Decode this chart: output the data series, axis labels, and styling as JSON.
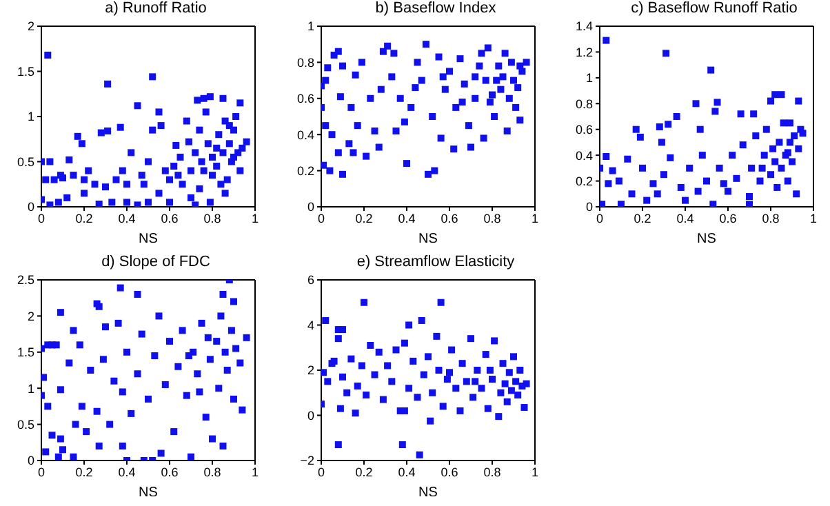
{
  "chart_data": [
    {
      "type": "scatter",
      "title": "a) Runoff Ratio",
      "xlabel": "NS",
      "color": "#1010ee",
      "marker": "square",
      "xlim": [
        0,
        1
      ],
      "xticks": [
        0,
        0.2,
        0.4,
        0.6,
        0.8,
        1
      ],
      "ylim": [
        0,
        2
      ],
      "yticks": [
        0,
        0.5,
        1,
        1.5,
        2
      ],
      "x": [
        0.03,
        0.31,
        0.52,
        0.45,
        0.55,
        0.76,
        0.79,
        0.73,
        0.85,
        0.93,
        0.28,
        0.31,
        0.37,
        0.17,
        0.19,
        0.0,
        0.04,
        0.02,
        0.06,
        0.1,
        0.13,
        0.15,
        0.2,
        0.25,
        0.3,
        0.35,
        0.4,
        0.42,
        0.47,
        0.5,
        0.52,
        0.56,
        0.6,
        0.62,
        0.65,
        0.68,
        0.7,
        0.72,
        0.75,
        0.77,
        0.78,
        0.8,
        0.82,
        0.83,
        0.85,
        0.86,
        0.88,
        0.89,
        0.9,
        0.92,
        0.94,
        0.96,
        0.93,
        0.87,
        0.84,
        0.8,
        0.74,
        0.7,
        0.66,
        0.6,
        0.55,
        0.5,
        0.45,
        0.4,
        0.33,
        0.27,
        0.2,
        0.12,
        0.08,
        0.0,
        0.04,
        0.86,
        0.79,
        0.72,
        0.9,
        0.82,
        0.76,
        0.64,
        0.58,
        0.48,
        0.38,
        0.22,
        0.09,
        0.69,
        0.63,
        0.74,
        0.88,
        0.91
      ],
      "values": [
        1.68,
        1.36,
        1.44,
        1.12,
        1.05,
        1.2,
        1.22,
        1.18,
        1.2,
        1.15,
        0.82,
        0.84,
        0.88,
        0.78,
        0.7,
        0.5,
        0.5,
        0.3,
        0.3,
        0.32,
        0.52,
        0.35,
        0.3,
        0.25,
        0.22,
        0.3,
        0.25,
        0.6,
        0.35,
        0.5,
        0.85,
        0.9,
        0.3,
        0.45,
        0.55,
        0.95,
        0.4,
        0.6,
        0.5,
        1.05,
        0.7,
        0.55,
        0.45,
        0.8,
        0.6,
        0.95,
        0.7,
        0.5,
        0.85,
        0.6,
        0.65,
        0.72,
        0.4,
        0.3,
        0.25,
        0.35,
        0.2,
        0.1,
        0.25,
        0.05,
        0.15,
        0.05,
        0.02,
        0.05,
        0.05,
        0.03,
        0.15,
        0.1,
        0.05,
        0.08,
        0.02,
        0.15,
        0.05,
        0.02,
        0.55,
        0.65,
        0.4,
        0.35,
        0.4,
        0.25,
        0.4,
        0.4,
        0.35,
        0.72,
        0.68,
        0.85,
        0.9,
        1.0
      ]
    },
    {
      "type": "scatter",
      "title": "b) Baseflow Index",
      "xlabel": "NS",
      "color": "#1010ee",
      "marker": "square",
      "xlim": [
        0,
        1
      ],
      "xticks": [
        0,
        0.2,
        0.4,
        0.6,
        0.8,
        1
      ],
      "ylim": [
        0,
        1
      ],
      "yticks": [
        0,
        0.2,
        0.4,
        0.6,
        0.8,
        1
      ],
      "x": [
        0,
        0.02,
        0.03,
        0.0,
        0.02,
        0.01,
        0.04,
        0.1,
        0.08,
        0.09,
        0.06,
        0.08,
        0.05,
        0.1,
        0.14,
        0.16,
        0.15,
        0.13,
        0.19,
        0.21,
        0.17,
        0.23,
        0.25,
        0.27,
        0.28,
        0.29,
        0.31,
        0.33,
        0.34,
        0.35,
        0.37,
        0.39,
        0.4,
        0.42,
        0.45,
        0.47,
        0.49,
        0.5,
        0.53,
        0.52,
        0.55,
        0.56,
        0.58,
        0.6,
        0.62,
        0.63,
        0.65,
        0.67,
        0.69,
        0.7,
        0.72,
        0.74,
        0.75,
        0.77,
        0.78,
        0.8,
        0.81,
        0.83,
        0.84,
        0.85,
        0.86,
        0.87,
        0.88,
        0.89,
        0.9,
        0.91,
        0.92,
        0.93,
        0.94,
        0.96,
        0.93,
        0.76,
        0.66,
        0.57,
        0.44,
        0.72,
        0.82,
        0.79
      ],
      "values": [
        0.67,
        0.7,
        0.77,
        0.55,
        0.45,
        0.23,
        0.2,
        0.18,
        0.3,
        0.61,
        0.84,
        0.86,
        0.4,
        0.78,
        0.55,
        0.73,
        0.3,
        0.35,
        0.8,
        0.28,
        0.45,
        0.6,
        0.42,
        0.33,
        0.65,
        0.86,
        0.89,
        0.72,
        0.85,
        0.42,
        0.6,
        0.47,
        0.24,
        0.55,
        0.8,
        0.7,
        0.9,
        0.18,
        0.2,
        0.5,
        0.83,
        0.38,
        0.65,
        0.75,
        0.32,
        0.55,
        0.82,
        0.68,
        0.45,
        0.33,
        0.6,
        0.78,
        0.85,
        0.7,
        0.88,
        0.62,
        0.5,
        0.78,
        0.65,
        0.72,
        0.85,
        0.42,
        0.6,
        0.8,
        0.7,
        0.55,
        0.66,
        0.78,
        0.75,
        0.8,
        0.48,
        0.38,
        0.58,
        0.72,
        0.66,
        0.72,
        0.7,
        0.58
      ]
    },
    {
      "type": "scatter",
      "title": "c) Baseflow Runoff Ratio",
      "xlabel": "NS",
      "color": "#1010ee",
      "marker": "square",
      "xlim": [
        0,
        1
      ],
      "xticks": [
        0,
        0.2,
        0.4,
        0.6,
        0.8,
        1
      ],
      "ylim": [
        0,
        1.4
      ],
      "yticks": [
        0,
        0.2,
        0.4,
        0.6,
        0.8,
        1,
        1.2,
        1.4
      ],
      "x": [
        0.03,
        0.31,
        0.52,
        0.45,
        0.55,
        0.36,
        0.17,
        0.19,
        0.29,
        0.28,
        0.32,
        0.47,
        0.54,
        0.66,
        0.72,
        0.8,
        0.82,
        0.85,
        0.93,
        0.89,
        0.0,
        0.03,
        0.01,
        0.04,
        0.06,
        0.09,
        0.1,
        0.13,
        0.15,
        0.2,
        0.22,
        0.25,
        0.27,
        0.3,
        0.33,
        0.38,
        0.4,
        0.42,
        0.48,
        0.5,
        0.53,
        0.56,
        0.6,
        0.62,
        0.64,
        0.67,
        0.7,
        0.71,
        0.73,
        0.75,
        0.77,
        0.78,
        0.8,
        0.81,
        0.83,
        0.84,
        0.85,
        0.86,
        0.87,
        0.88,
        0.89,
        0.9,
        0.91,
        0.92,
        0.93,
        0.94,
        0.95,
        0.7,
        0.58,
        0.46,
        0.76,
        0.82,
        0.88
      ],
      "values": [
        1.29,
        1.19,
        1.06,
        0.8,
        0.81,
        0.7,
        0.6,
        0.54,
        0.5,
        0.62,
        0.64,
        0.6,
        0.74,
        0.72,
        0.72,
        0.82,
        0.87,
        0.87,
        0.82,
        0.65,
        0.3,
        0.39,
        0.02,
        0.18,
        0.28,
        0.2,
        0.02,
        0.37,
        0.1,
        0.3,
        0.05,
        0.18,
        0.1,
        0.25,
        0.38,
        0.15,
        0.05,
        0.3,
        0.4,
        0.2,
        0.02,
        0.3,
        0.12,
        0.4,
        0.22,
        0.48,
        0.08,
        0.3,
        0.55,
        0.2,
        0.4,
        0.6,
        0.25,
        0.45,
        0.15,
        0.5,
        0.3,
        0.65,
        0.4,
        0.2,
        0.5,
        0.35,
        0.55,
        0.1,
        0.45,
        0.6,
        0.57,
        0.02,
        0.18,
        0.12,
        0.3,
        0.35,
        0.42
      ]
    },
    {
      "type": "scatter",
      "title": "d) Slope of FDC",
      "xlabel": "NS",
      "color": "#1010ee",
      "marker": "square",
      "xlim": [
        0,
        1
      ],
      "xticks": [
        0,
        0.2,
        0.4,
        0.6,
        0.8,
        1
      ],
      "ylim": [
        0,
        2.5
      ],
      "yticks": [
        0,
        0.5,
        1,
        1.5,
        2,
        2.5
      ],
      "x": [
        0.88,
        0.37,
        0.09,
        0.26,
        0.27,
        0.45,
        0.85,
        0.9,
        0.0,
        0.03,
        0.05,
        0.07,
        0.0,
        0.01,
        0.03,
        0.02,
        0.05,
        0.08,
        0.09,
        0.09,
        0.1,
        0.13,
        0.15,
        0.15,
        0.16,
        0.18,
        0.19,
        0.21,
        0.23,
        0.26,
        0.27,
        0.29,
        0.3,
        0.32,
        0.34,
        0.36,
        0.38,
        0.38,
        0.4,
        0.4,
        0.42,
        0.45,
        0.47,
        0.48,
        0.5,
        0.52,
        0.53,
        0.55,
        0.56,
        0.58,
        0.6,
        0.62,
        0.64,
        0.66,
        0.68,
        0.7,
        0.71,
        0.73,
        0.75,
        0.77,
        0.79,
        0.8,
        0.82,
        0.83,
        0.84,
        0.85,
        0.86,
        0.87,
        0.89,
        0.9,
        0.91,
        0.93,
        0.94,
        0.96,
        0.78,
        0.69,
        0.74
      ],
      "values": [
        2.5,
        2.39,
        2.05,
        2.17,
        2.13,
        2.3,
        2.3,
        2.2,
        1.55,
        1.6,
        1.6,
        1.6,
        0.9,
        1.15,
        0.75,
        0.12,
        0.35,
        0.05,
        0.98,
        0.3,
        0.15,
        1.35,
        1.8,
        0.05,
        0.5,
        1.6,
        0.75,
        0.4,
        1.25,
        0.68,
        0.2,
        1.4,
        1.85,
        0.5,
        1.1,
        1.9,
        0.2,
        0.95,
        1.5,
        0.0,
        0.65,
        1.2,
        1.75,
        0.0,
        0.85,
        0.0,
        1.45,
        2.0,
        0.1,
        1.05,
        1.65,
        0.4,
        1.3,
        1.8,
        0.9,
        0.05,
        1.5,
        1.2,
        1.9,
        0.6,
        1.4,
        0.3,
        1.65,
        1.0,
        2.0,
        0.2,
        1.5,
        1.25,
        1.8,
        0.85,
        1.55,
        1.35,
        0.7,
        1.7,
        1.7,
        1.45,
        0.95
      ]
    },
    {
      "type": "scatter",
      "title": "e) Streamflow Elasticity",
      "xlabel": "NS",
      "color": "#1010ee",
      "marker": "square",
      "xlim": [
        0,
        1
      ],
      "xticks": [
        0,
        0.2,
        0.4,
        0.6,
        0.8,
        1
      ],
      "ylim": [
        -2,
        6
      ],
      "yticks": [
        {
          "value": -2,
          "label": "−2"
        },
        0,
        2,
        4,
        6
      ],
      "x": [
        0.2,
        0.56,
        0.02,
        0.08,
        0.1,
        0.08,
        0.47,
        0.41,
        0.08,
        0.38,
        0.46,
        0.51,
        0.0,
        0.01,
        0.03,
        0.05,
        0.06,
        0.09,
        0.1,
        0.12,
        0.14,
        0.16,
        0.17,
        0.19,
        0.21,
        0.23,
        0.25,
        0.27,
        0.29,
        0.31,
        0.33,
        0.35,
        0.37,
        0.39,
        0.39,
        0.41,
        0.43,
        0.45,
        0.48,
        0.5,
        0.52,
        0.54,
        0.55,
        0.57,
        0.59,
        0.61,
        0.63,
        0.65,
        0.66,
        0.68,
        0.7,
        0.71,
        0.73,
        0.75,
        0.77,
        0.78,
        0.8,
        0.81,
        0.83,
        0.84,
        0.85,
        0.86,
        0.87,
        0.88,
        0.89,
        0.9,
        0.91,
        0.92,
        0.93,
        0.94,
        0.95,
        0.96,
        0.6,
        0.72,
        0.79
      ],
      "values": [
        5.0,
        5.0,
        4.2,
        3.8,
        3.8,
        3.4,
        4.2,
        4.0,
        -1.3,
        -1.3,
        -1.75,
        -0.25,
        0.5,
        1.9,
        1.5,
        2.3,
        2.4,
        0.3,
        1.7,
        1.0,
        2.5,
        0.1,
        1.3,
        2.2,
        0.9,
        3.1,
        1.8,
        2.8,
        0.7,
        2.2,
        1.5,
        2.9,
        0.2,
        0.2,
        3.2,
        1.2,
        2.4,
        0.8,
        1.8,
        2.6,
        1.0,
        3.5,
        2.0,
        0.4,
        1.6,
        2.9,
        1.2,
        0.2,
        2.3,
        1.5,
        3.4,
        0.8,
        2.0,
        1.2,
        2.7,
        0.3,
        1.6,
        3.3,
        -0.05,
        1.0,
        2.3,
        1.4,
        0.6,
        1.9,
        1.1,
        2.6,
        1.5,
        0.9,
        2.0,
        1.3,
        0.35,
        1.4,
        1.9,
        1.5,
        2.0
      ]
    }
  ]
}
